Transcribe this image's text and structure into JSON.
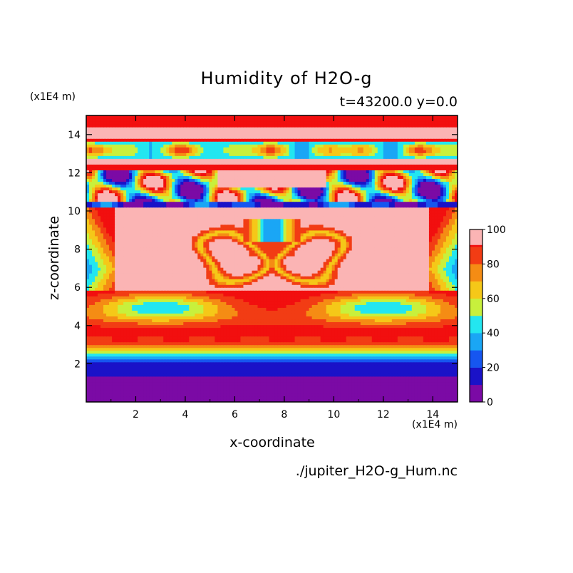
{
  "chart_data": {
    "type": "heatmap",
    "title": "Humidity of H2O-g",
    "subtitle": "t=43200.0 y=0.0",
    "xlabel": "x-coordinate",
    "ylabel": "z-coordinate",
    "x_multiplier": "(x1E4 m)",
    "y_multiplier": "(x1E4 m)",
    "xlim": [
      0,
      15
    ],
    "ylim": [
      0,
      15
    ],
    "x_ticks": [
      "2",
      "4",
      "6",
      "8",
      "10",
      "12",
      "14"
    ],
    "y_ticks": [
      "2",
      "4",
      "6",
      "8",
      "10",
      "12",
      "14"
    ],
    "colorbar": {
      "levels": [
        0,
        10,
        20,
        30,
        40,
        50,
        60,
        70,
        80,
        90,
        100
      ],
      "labels": [
        "0",
        "20",
        "40",
        "60",
        "80",
        "100"
      ],
      "colors": [
        "#7b0aa5",
        "#1a12c8",
        "#1656f0",
        "#1aa6f5",
        "#23e6f0",
        "#c8f03c",
        "#f5c818",
        "#f58c14",
        "#f23c14",
        "#f20f0f"
      ],
      "top_color": "#fbb4b4"
    },
    "filename": "./jupiter_H2O-g_Hum.nc"
  }
}
